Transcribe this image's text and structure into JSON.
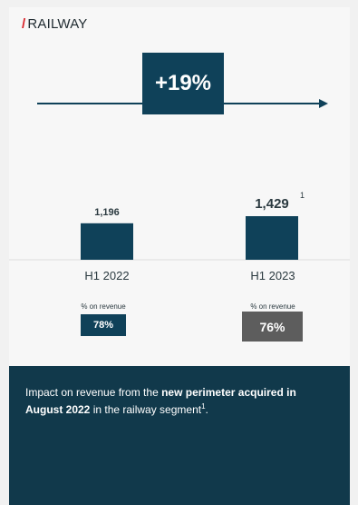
{
  "section": {
    "slash": "/",
    "title": "RAILWAY"
  },
  "growth": {
    "label": "+19%"
  },
  "chart_data": {
    "type": "bar",
    "categories": [
      "H1 2022",
      "H1 2023"
    ],
    "values": [
      1196,
      1429
    ],
    "value_labels": [
      "1,196",
      "1,429"
    ],
    "footnote_marker": "1",
    "share_caption": "% on revenue",
    "shares": [
      "78%",
      "76%"
    ]
  },
  "colors": {
    "bar": "#0f4159",
    "badge_2022": "#0f4159",
    "badge_2023": "#5d5d5d",
    "accent": "#d8232a",
    "footer": "#11394b"
  },
  "footer": {
    "text_1": "Impact on revenue from the ",
    "bold_1": "new perimeter acquired in August 2022",
    "text_2": " in the railway segment",
    "marker": "1",
    "end": "."
  }
}
